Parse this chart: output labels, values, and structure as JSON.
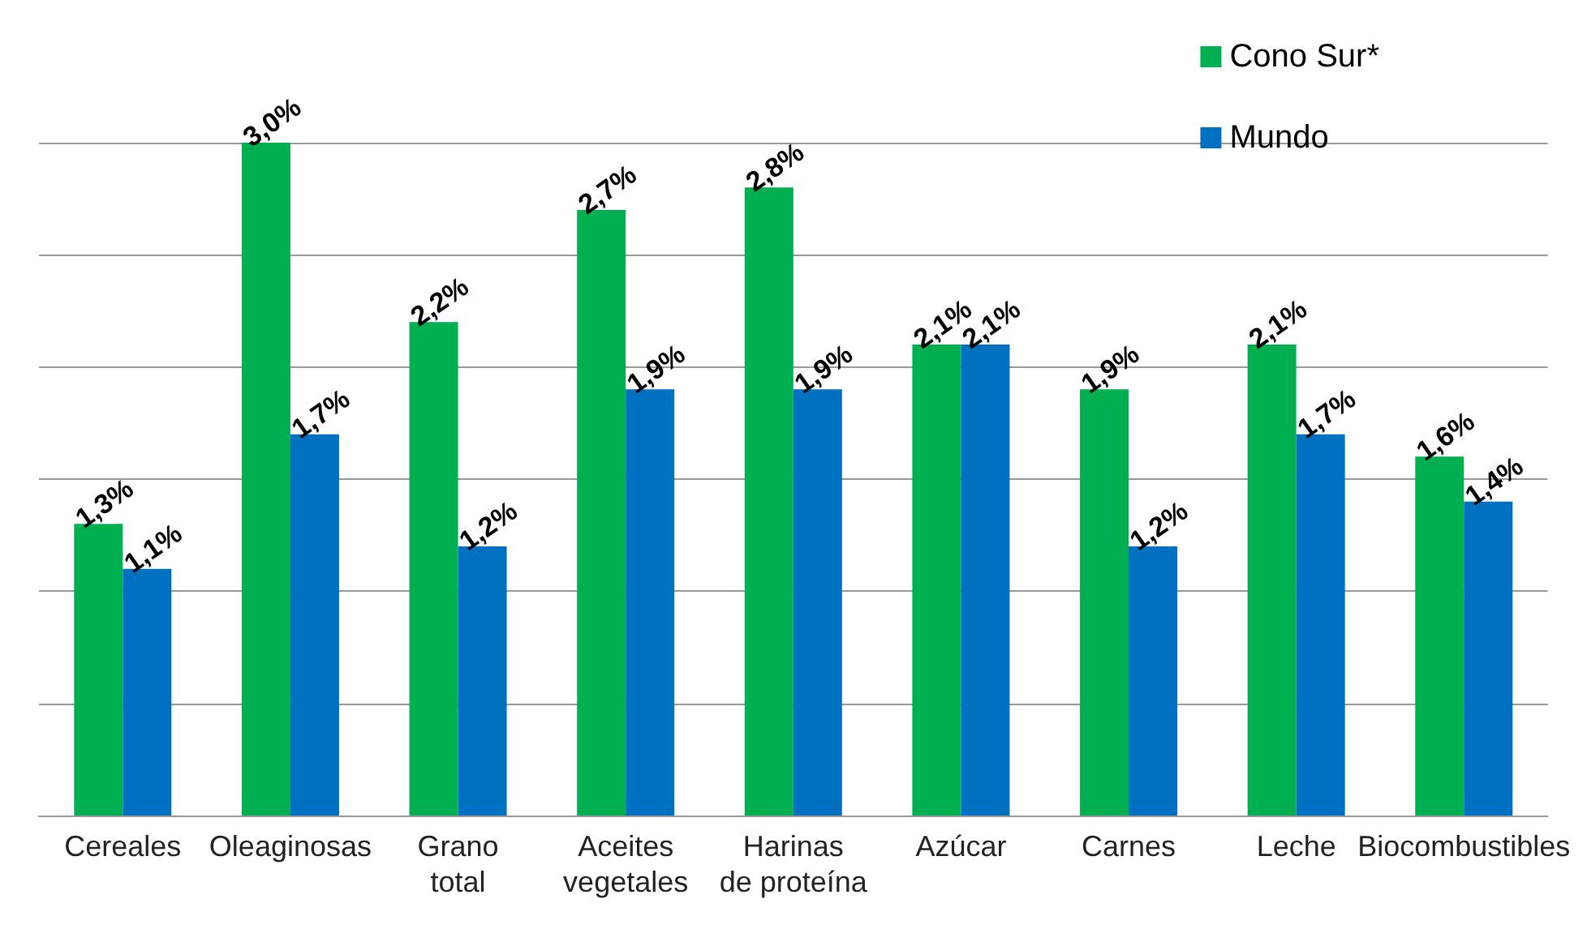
{
  "chart_data": {
    "type": "bar",
    "categories": [
      "Cereales",
      "Oleaginosas",
      "Grano\ntotal",
      "Aceites\nvegetales",
      "Harinas\nde proteína",
      "Azúcar",
      "Carnes",
      "Leche",
      "Biocombustibles"
    ],
    "series": [
      {
        "name": "Cono Sur*",
        "color": "#00b050",
        "values": [
          1.3,
          3.0,
          2.2,
          2.7,
          2.8,
          2.1,
          1.9,
          2.1,
          1.6
        ],
        "value_labels": [
          "1,3%",
          "3,0%",
          "2,2%",
          "2,7%",
          "2,8%",
          "2,1%",
          "1,9%",
          "2,1%",
          "1,6%"
        ]
      },
      {
        "name": "Mundo",
        "color": "#0070c0",
        "values": [
          1.1,
          1.7,
          1.2,
          1.9,
          1.9,
          2.1,
          1.2,
          1.7,
          1.4
        ],
        "value_labels": [
          "1,1%",
          "1,7%",
          "1,2%",
          "1,9%",
          "1,9%",
          "2,1%",
          "1,2%",
          "1,7%",
          "1,4%"
        ]
      }
    ],
    "ylim": [
      0,
      3
    ],
    "yticks": [
      0,
      0.5,
      1,
      1.5,
      2,
      2.5,
      3
    ],
    "tick_labels": "x",
    "grid": "y",
    "legend": "top right"
  }
}
